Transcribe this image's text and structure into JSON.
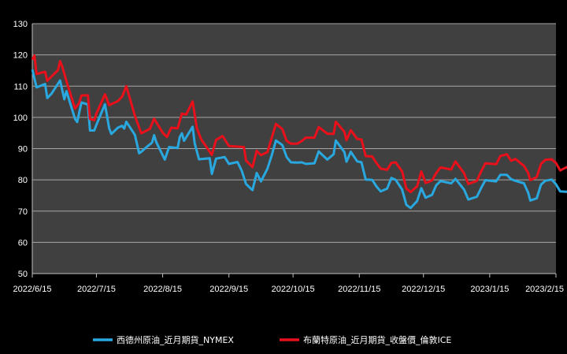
{
  "chart_data": {
    "type": "line",
    "title": "",
    "xlabel": "",
    "ylabel": "",
    "ylim": [
      50,
      130
    ],
    "yticks": [
      50,
      60,
      70,
      80,
      90,
      100,
      110,
      120,
      130
    ],
    "xlim": [
      "2022-06-15",
      "2023-02-15"
    ],
    "xticks": [
      "2022/6/15",
      "2022/7/15",
      "2022/8/15",
      "2022/9/15",
      "2022/10/15",
      "2022/11/15",
      "2022/12/15",
      "2023/1/15",
      "2023/2/15"
    ],
    "grid": true,
    "legend_position": "bottom",
    "plot_background": "#404040",
    "series": [
      {
        "name": "西德州原油_近月期貨_NYMEX",
        "color": "#29a8e0",
        "points": [
          [
            "2022-06-15",
            115.3
          ],
          [
            "2022-06-17",
            109.6
          ],
          [
            "2022-06-21",
            110.7
          ],
          [
            "2022-06-22",
            106.2
          ],
          [
            "2022-06-24",
            107.6
          ],
          [
            "2022-06-28",
            111.8
          ],
          [
            "2022-06-30",
            105.8
          ],
          [
            "2022-07-01",
            108.4
          ],
          [
            "2022-07-05",
            99.5
          ],
          [
            "2022-07-06",
            98.5
          ],
          [
            "2022-07-08",
            104.8
          ],
          [
            "2022-07-11",
            104.1
          ],
          [
            "2022-07-12",
            95.8
          ],
          [
            "2022-07-14",
            95.8
          ],
          [
            "2022-07-15",
            97.6
          ],
          [
            "2022-07-19",
            104.2
          ],
          [
            "2022-07-21",
            96.4
          ],
          [
            "2022-07-22",
            94.7
          ],
          [
            "2022-07-25",
            96.7
          ],
          [
            "2022-07-27",
            97.3
          ],
          [
            "2022-07-28",
            96.4
          ],
          [
            "2022-07-29",
            98.6
          ],
          [
            "2022-08-02",
            94.4
          ],
          [
            "2022-08-04",
            88.5
          ],
          [
            "2022-08-05",
            89.0
          ],
          [
            "2022-08-08",
            90.8
          ],
          [
            "2022-08-10",
            91.9
          ],
          [
            "2022-08-11",
            94.3
          ],
          [
            "2022-08-12",
            92.1
          ],
          [
            "2022-08-16",
            86.5
          ],
          [
            "2022-08-18",
            90.5
          ],
          [
            "2022-08-22",
            90.2
          ],
          [
            "2022-08-23",
            93.7
          ],
          [
            "2022-08-24",
            94.9
          ],
          [
            "2022-08-25",
            92.5
          ],
          [
            "2022-08-29",
            97.0
          ],
          [
            "2022-08-30",
            91.6
          ],
          [
            "2022-09-01",
            86.6
          ],
          [
            "2022-09-06",
            86.9
          ],
          [
            "2022-09-07",
            81.9
          ],
          [
            "2022-09-09",
            86.8
          ],
          [
            "2022-09-13",
            87.3
          ],
          [
            "2022-09-15",
            85.1
          ],
          [
            "2022-09-19",
            85.7
          ],
          [
            "2022-09-21",
            82.9
          ],
          [
            "2022-09-23",
            78.7
          ],
          [
            "2022-09-26",
            76.7
          ],
          [
            "2022-09-28",
            82.2
          ],
          [
            "2022-09-30",
            79.5
          ],
          [
            "2022-10-03",
            83.6
          ],
          [
            "2022-10-05",
            87.8
          ],
          [
            "2022-10-07",
            92.6
          ],
          [
            "2022-10-10",
            91.1
          ],
          [
            "2022-10-12",
            87.3
          ],
          [
            "2022-10-14",
            85.6
          ],
          [
            "2022-10-17",
            85.5
          ],
          [
            "2022-10-19",
            85.6
          ],
          [
            "2022-10-21",
            85.1
          ],
          [
            "2022-10-25",
            85.3
          ],
          [
            "2022-10-27",
            89.1
          ],
          [
            "2022-10-31",
            86.5
          ],
          [
            "2022-11-03",
            88.2
          ],
          [
            "2022-11-04",
            92.6
          ],
          [
            "2022-11-08",
            88.9
          ],
          [
            "2022-11-09",
            85.8
          ],
          [
            "2022-11-11",
            89.0
          ],
          [
            "2022-11-14",
            85.9
          ],
          [
            "2022-11-16",
            85.6
          ],
          [
            "2022-11-18",
            80.1
          ],
          [
            "2022-11-21",
            80.0
          ],
          [
            "2022-11-23",
            77.9
          ],
          [
            "2022-11-25",
            76.3
          ],
          [
            "2022-11-28",
            77.2
          ],
          [
            "2022-11-30",
            80.6
          ],
          [
            "2022-12-02",
            80.0
          ],
          [
            "2022-12-05",
            76.9
          ],
          [
            "2022-12-07",
            72.0
          ],
          [
            "2022-12-09",
            71.0
          ],
          [
            "2022-12-12",
            73.2
          ],
          [
            "2022-12-14",
            77.3
          ],
          [
            "2022-12-16",
            74.3
          ],
          [
            "2022-12-19",
            75.2
          ],
          [
            "2022-12-21",
            78.3
          ],
          [
            "2022-12-23",
            79.6
          ],
          [
            "2022-12-28",
            78.9
          ],
          [
            "2022-12-30",
            80.3
          ],
          [
            "2023-01-03",
            76.9
          ],
          [
            "2023-01-05",
            73.7
          ],
          [
            "2023-01-09",
            74.6
          ],
          [
            "2023-01-11",
            77.4
          ],
          [
            "2023-01-13",
            79.9
          ],
          [
            "2023-01-18",
            79.5
          ],
          [
            "2023-01-20",
            81.6
          ],
          [
            "2023-01-23",
            81.6
          ],
          [
            "2023-01-25",
            80.2
          ],
          [
            "2023-01-27",
            79.7
          ],
          [
            "2023-01-31",
            78.9
          ],
          [
            "2023-02-02",
            75.9
          ],
          [
            "2023-02-03",
            73.4
          ],
          [
            "2023-02-06",
            74.1
          ],
          [
            "2023-02-08",
            78.5
          ],
          [
            "2023-02-10",
            79.7
          ],
          [
            "2023-02-13",
            80.1
          ],
          [
            "2023-02-15",
            78.6
          ],
          [
            "2023-02-17",
            76.3
          ],
          [
            "2023-02-20",
            76.2
          ],
          [
            "2023-02-22",
            76.1
          ]
        ]
      },
      {
        "name": "布蘭特原油_近月期貨_收盤價_倫敦ICE",
        "color": "#e8111b",
        "points": [
          [
            "2022-06-15",
            118.5
          ],
          [
            "2022-06-16",
            119.8
          ],
          [
            "2022-06-17",
            113.9
          ],
          [
            "2022-06-21",
            114.6
          ],
          [
            "2022-06-22",
            111.7
          ],
          [
            "2022-06-24",
            113.1
          ],
          [
            "2022-06-27",
            115.1
          ],
          [
            "2022-06-28",
            118.0
          ],
          [
            "2022-06-29",
            116.3
          ],
          [
            "2022-07-01",
            111.6
          ],
          [
            "2022-07-05",
            102.8
          ],
          [
            "2022-07-07",
            104.7
          ],
          [
            "2022-07-08",
            107.0
          ],
          [
            "2022-07-11",
            107.1
          ],
          [
            "2022-07-12",
            99.5
          ],
          [
            "2022-07-14",
            99.1
          ],
          [
            "2022-07-15",
            101.2
          ],
          [
            "2022-07-19",
            107.4
          ],
          [
            "2022-07-21",
            103.9
          ],
          [
            "2022-07-25",
            105.2
          ],
          [
            "2022-07-27",
            106.6
          ],
          [
            "2022-07-29",
            110.0
          ],
          [
            "2022-08-02",
            100.5
          ],
          [
            "2022-08-05",
            94.9
          ],
          [
            "2022-08-09",
            96.3
          ],
          [
            "2022-08-11",
            99.6
          ],
          [
            "2022-08-15",
            95.1
          ],
          [
            "2022-08-17",
            93.7
          ],
          [
            "2022-08-19",
            96.7
          ],
          [
            "2022-08-22",
            96.5
          ],
          [
            "2022-08-24",
            101.2
          ],
          [
            "2022-08-26",
            100.9
          ],
          [
            "2022-08-29",
            105.1
          ],
          [
            "2022-08-31",
            96.5
          ],
          [
            "2022-09-02",
            93.0
          ],
          [
            "2022-09-07",
            88.0
          ],
          [
            "2022-09-09",
            92.8
          ],
          [
            "2022-09-12",
            94.0
          ],
          [
            "2022-09-15",
            90.8
          ],
          [
            "2022-09-20",
            90.6
          ],
          [
            "2022-09-22",
            90.5
          ],
          [
            "2022-09-23",
            86.2
          ],
          [
            "2022-09-26",
            84.1
          ],
          [
            "2022-09-28",
            89.3
          ],
          [
            "2022-09-30",
            87.9
          ],
          [
            "2022-10-03",
            88.9
          ],
          [
            "2022-10-05",
            93.4
          ],
          [
            "2022-10-07",
            97.9
          ],
          [
            "2022-10-10",
            96.2
          ],
          [
            "2022-10-12",
            92.5
          ],
          [
            "2022-10-14",
            91.6
          ],
          [
            "2022-10-17",
            91.6
          ],
          [
            "2022-10-19",
            92.4
          ],
          [
            "2022-10-21",
            93.5
          ],
          [
            "2022-10-25",
            93.5
          ],
          [
            "2022-10-27",
            96.9
          ],
          [
            "2022-10-31",
            94.8
          ],
          [
            "2022-11-03",
            94.7
          ],
          [
            "2022-11-04",
            98.6
          ],
          [
            "2022-11-08",
            95.4
          ],
          [
            "2022-11-09",
            92.7
          ],
          [
            "2022-11-11",
            95.9
          ],
          [
            "2022-11-14",
            93.1
          ],
          [
            "2022-11-16",
            92.9
          ],
          [
            "2022-11-18",
            87.6
          ],
          [
            "2022-11-21",
            87.5
          ],
          [
            "2022-11-23",
            85.4
          ],
          [
            "2022-11-25",
            83.6
          ],
          [
            "2022-11-28",
            83.2
          ],
          [
            "2022-11-30",
            85.4
          ],
          [
            "2022-12-02",
            85.6
          ],
          [
            "2022-12-05",
            82.7
          ],
          [
            "2022-12-07",
            77.2
          ],
          [
            "2022-12-09",
            76.1
          ],
          [
            "2022-12-12",
            77.9
          ],
          [
            "2022-12-14",
            82.7
          ],
          [
            "2022-12-16",
            79.0
          ],
          [
            "2022-12-19",
            79.8
          ],
          [
            "2022-12-21",
            82.2
          ],
          [
            "2022-12-23",
            84.0
          ],
          [
            "2022-12-28",
            83.3
          ],
          [
            "2022-12-30",
            85.9
          ],
          [
            "2023-01-03",
            82.1
          ],
          [
            "2023-01-05",
            78.7
          ],
          [
            "2023-01-09",
            79.7
          ],
          [
            "2023-01-11",
            82.7
          ],
          [
            "2023-01-13",
            85.3
          ],
          [
            "2023-01-18",
            85.0
          ],
          [
            "2023-01-20",
            87.6
          ],
          [
            "2023-01-23",
            88.2
          ],
          [
            "2023-01-25",
            86.1
          ],
          [
            "2023-01-27",
            86.7
          ],
          [
            "2023-01-31",
            84.5
          ],
          [
            "2023-02-02",
            82.2
          ],
          [
            "2023-02-03",
            79.9
          ],
          [
            "2023-02-06",
            80.9
          ],
          [
            "2023-02-08",
            85.1
          ],
          [
            "2023-02-10",
            86.4
          ],
          [
            "2023-02-13",
            86.6
          ],
          [
            "2023-02-15",
            85.4
          ],
          [
            "2023-02-17",
            83.0
          ],
          [
            "2023-02-20",
            84.1
          ],
          [
            "2023-02-22",
            82.8
          ]
        ]
      }
    ]
  }
}
